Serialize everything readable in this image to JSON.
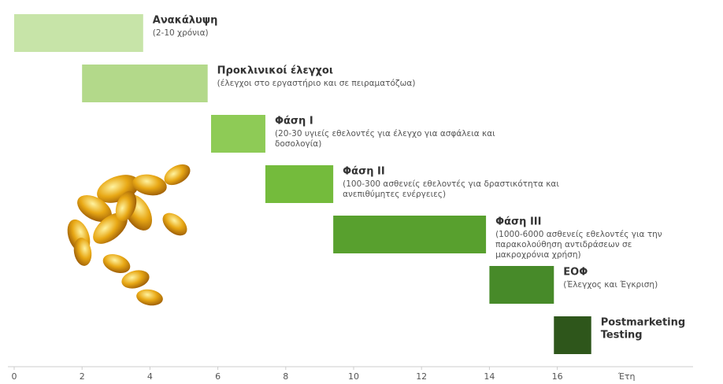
{
  "chart_data": {
    "type": "gantt",
    "xlim": [
      0,
      20
    ],
    "xticks": [
      0,
      2,
      4,
      6,
      8,
      10,
      12,
      14,
      16
    ],
    "xlabel": "Έτη",
    "tasks": [
      {
        "name": [
          "Ανακάλυψη"
        ],
        "subtitle": [
          "(2-10 χρόνια)"
        ],
        "start": 0,
        "end": 3.8,
        "color": "#c7e4a8"
      },
      {
        "name": [
          "Προκλινικοί έλεγχοι"
        ],
        "subtitle": [
          "(έλεγχοι στο εργαστήριο και σε πειραματόζωα)"
        ],
        "start": 2,
        "end": 5.7,
        "color": "#b3d98a"
      },
      {
        "name": [
          "Φάση I"
        ],
        "subtitle": [
          "(20-30 υγιείς εθελοντές για έλεγχο για ασφάλεια και",
          "δοσολογία)"
        ],
        "start": 5.8,
        "end": 7.4,
        "color": "#8ecb56"
      },
      {
        "name": [
          "Φάση II"
        ],
        "subtitle": [
          "(100-300 ασθενείς εθελοντές για δραστικότητα και",
          "ανεπιθύμητες ενέργειες)"
        ],
        "start": 7.4,
        "end": 9.4,
        "color": "#74bb3c"
      },
      {
        "name": [
          "Φάση III"
        ],
        "subtitle": [
          "(1000-6000 ασθενείς εθελοντές για την",
          "παρακολούθηση αντιδράσεων σε",
          "μακροχρόνια χρήση)"
        ],
        "start": 9.4,
        "end": 13.9,
        "color": "#58a02e"
      },
      {
        "name": [
          "ΕΟΦ"
        ],
        "subtitle": [
          "(Έλεγχος και Έγκριση)"
        ],
        "start": 14,
        "end": 15.9,
        "color": "#478a29"
      },
      {
        "name": [
          "Postmarketing",
          "Testing"
        ],
        "subtitle": [],
        "start": 15.9,
        "end": 17,
        "color": "#2e561b"
      }
    ]
  }
}
